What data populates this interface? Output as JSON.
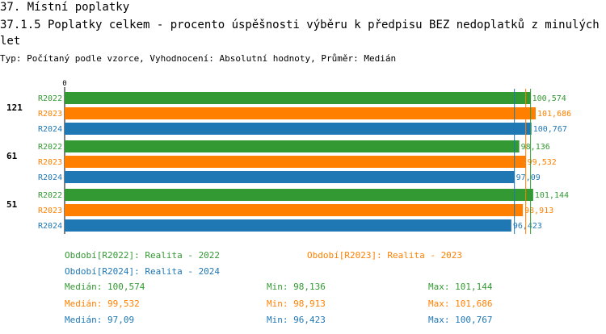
{
  "header": {
    "title": "37. Místní poplatky",
    "subtitle": "37.1.5 Poplatky celkem - procento úspěšnosti výběru k předpisu BEZ nedoplatků z minulých let",
    "type_line": "Typ: Počítaný podle vzorce, Vyhodnocení: Absolutní hodnoty, Průměr: Medián"
  },
  "colors": {
    "R2022": "#339933",
    "R2023": "#ff8000",
    "R2024": "#1f77b4"
  },
  "chart_data": {
    "type": "bar",
    "orientation": "horizontal",
    "x_tick_labels": [
      "0"
    ],
    "xlim": [
      0,
      105
    ],
    "groups": [
      {
        "label": "121",
        "bars": [
          {
            "series": "R2022",
            "value": 100.574,
            "label": "100,574"
          },
          {
            "series": "R2023",
            "value": 101.686,
            "label": "101,686"
          },
          {
            "series": "R2024",
            "value": 100.767,
            "label": "100,767"
          }
        ]
      },
      {
        "label": "61",
        "bars": [
          {
            "series": "R2022",
            "value": 98.136,
            "label": "98,136"
          },
          {
            "series": "R2023",
            "value": 99.532,
            "label": "99,532"
          },
          {
            "series": "R2024",
            "value": 97.09,
            "label": "97,09"
          }
        ]
      },
      {
        "label": "51",
        "bars": [
          {
            "series": "R2022",
            "value": 101.144,
            "label": "101,144"
          },
          {
            "series": "R2023",
            "value": 98.913,
            "label": "98,913"
          },
          {
            "series": "R2024",
            "value": 96.423,
            "label": "96,423"
          }
        ]
      }
    ],
    "median_lines": [
      {
        "series": "R2022",
        "value": 100.574
      },
      {
        "series": "R2023",
        "value": 99.532
      },
      {
        "series": "R2024",
        "value": 97.09
      }
    ]
  },
  "legend": {
    "periods": [
      {
        "series": "R2022",
        "text": "Období[R2022]: Realita - 2022"
      },
      {
        "series": "R2023",
        "text": "Období[R2023]: Realita - 2023"
      },
      {
        "series": "R2024",
        "text": "Období[R2024]: Realita - 2024"
      }
    ],
    "stats": [
      {
        "series": "R2022",
        "median": "Medián: 100,574",
        "min": "Min: 98,136",
        "max": "Max: 101,144"
      },
      {
        "series": "R2023",
        "median": "Medián: 99,532",
        "min": "Min: 98,913",
        "max": "Max: 101,686"
      },
      {
        "series": "R2024",
        "median": "Medián: 97,09",
        "min": "Min: 96,423",
        "max": "Max: 100,767"
      }
    ]
  }
}
